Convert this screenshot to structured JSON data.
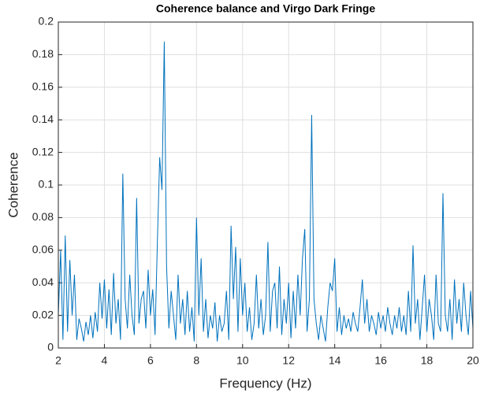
{
  "chart_data": {
    "type": "line",
    "title": "Coherence balance and Virgo Dark Fringe",
    "xlabel": "Frequency (Hz)",
    "ylabel": "Coherence",
    "x": [
      2.0,
      2.1,
      2.2,
      2.3,
      2.4,
      2.5,
      2.6,
      2.7,
      2.8,
      2.9,
      3.0,
      3.1,
      3.2,
      3.3,
      3.4,
      3.5,
      3.6,
      3.7,
      3.8,
      3.9,
      4.0,
      4.1,
      4.2,
      4.3,
      4.4,
      4.5,
      4.6,
      4.7,
      4.8,
      4.9,
      5.0,
      5.1,
      5.2,
      5.3,
      5.4,
      5.5,
      5.6,
      5.7,
      5.8,
      5.9,
      6.0,
      6.1,
      6.2,
      6.3,
      6.4,
      6.5,
      6.6,
      6.7,
      6.8,
      6.9,
      7.0,
      7.1,
      7.2,
      7.3,
      7.4,
      7.5,
      7.6,
      7.7,
      7.8,
      7.9,
      8.0,
      8.1,
      8.2,
      8.3,
      8.4,
      8.5,
      8.6,
      8.7,
      8.8,
      8.9,
      9.0,
      9.1,
      9.2,
      9.3,
      9.4,
      9.5,
      9.6,
      9.7,
      9.8,
      9.9,
      10.0,
      10.1,
      10.2,
      10.3,
      10.4,
      10.5,
      10.6,
      10.7,
      10.8,
      10.9,
      11.0,
      11.1,
      11.2,
      11.3,
      11.4,
      11.5,
      11.6,
      11.7,
      11.8,
      11.9,
      12.0,
      12.1,
      12.2,
      12.3,
      12.4,
      12.5,
      12.6,
      12.7,
      12.8,
      12.9,
      13.0,
      13.1,
      13.2,
      13.3,
      13.4,
      13.5,
      13.6,
      13.7,
      13.8,
      13.9,
      14.0,
      14.1,
      14.2,
      14.3,
      14.4,
      14.5,
      14.6,
      14.7,
      14.8,
      14.9,
      15.0,
      15.1,
      15.2,
      15.3,
      15.4,
      15.5,
      15.6,
      15.7,
      15.8,
      15.9,
      16.0,
      16.1,
      16.2,
      16.3,
      16.4,
      16.5,
      16.6,
      16.7,
      16.8,
      16.9,
      17.0,
      17.1,
      17.2,
      17.3,
      17.4,
      17.5,
      17.6,
      17.7,
      17.8,
      17.9,
      18.0,
      18.1,
      18.2,
      18.3,
      18.4,
      18.5,
      18.6,
      18.7,
      18.8,
      18.9,
      19.0,
      19.1,
      19.2,
      19.3,
      19.4,
      19.5,
      19.6,
      19.7,
      19.8,
      19.9,
      20.0
    ],
    "series": [
      {
        "color": "#0072bd",
        "values": [
          0.02,
          0.06,
          0.005,
          0.069,
          0.01,
          0.054,
          0.02,
          0.045,
          0.005,
          0.018,
          0.012,
          0.004,
          0.016,
          0.008,
          0.02,
          0.006,
          0.022,
          0.01,
          0.04,
          0.018,
          0.042,
          0.012,
          0.036,
          0.008,
          0.046,
          0.015,
          0.03,
          0.005,
          0.107,
          0.03,
          0.012,
          0.045,
          0.02,
          0.008,
          0.092,
          0.015,
          0.03,
          0.035,
          0.012,
          0.048,
          0.02,
          0.036,
          0.008,
          0.065,
          0.117,
          0.097,
          0.188,
          0.05,
          0.012,
          0.035,
          0.02,
          0.005,
          0.045,
          0.015,
          0.03,
          0.008,
          0.035,
          0.01,
          0.025,
          0.004,
          0.08,
          0.02,
          0.055,
          0.01,
          0.03,
          0.006,
          0.02,
          0.012,
          0.028,
          0.004,
          0.02,
          0.01,
          0.015,
          0.035,
          0.005,
          0.075,
          0.03,
          0.062,
          0.01,
          0.055,
          0.02,
          0.04,
          0.01,
          0.025,
          0.005,
          0.015,
          0.045,
          0.012,
          0.03,
          0.008,
          0.02,
          0.065,
          0.01,
          0.035,
          0.04,
          0.012,
          0.05,
          0.008,
          0.03,
          0.015,
          0.04,
          0.006,
          0.035,
          0.012,
          0.045,
          0.02,
          0.055,
          0.073,
          0.01,
          0.03,
          0.143,
          0.03,
          0.015,
          0.005,
          0.02,
          0.012,
          0.004,
          0.025,
          0.04,
          0.035,
          0.055,
          0.01,
          0.025,
          0.008,
          0.02,
          0.012,
          0.018,
          0.01,
          0.022,
          0.015,
          0.01,
          0.025,
          0.042,
          0.015,
          0.03,
          0.01,
          0.02,
          0.015,
          0.008,
          0.022,
          0.012,
          0.02,
          0.01,
          0.025,
          0.015,
          0.008,
          0.02,
          0.012,
          0.025,
          0.01,
          0.02,
          0.008,
          0.035,
          0.01,
          0.063,
          0.015,
          0.03,
          0.005,
          0.025,
          0.045,
          0.01,
          0.03,
          0.02,
          0.005,
          0.045,
          0.015,
          0.01,
          0.095,
          0.02,
          0.01,
          0.03,
          0.005,
          0.042,
          0.015,
          0.03,
          0.01,
          0.04,
          0.02,
          0.008,
          0.035,
          0.012
        ]
      }
    ],
    "xlim": [
      2,
      20
    ],
    "xticks": [
      2,
      4,
      6,
      8,
      10,
      12,
      14,
      16,
      18,
      20
    ],
    "ylim": [
      0,
      0.2
    ],
    "yticks": [
      0,
      0.02,
      0.04,
      0.06,
      0.08,
      0.1,
      0.12,
      0.14,
      0.16,
      0.18,
      0.2
    ],
    "grid": true
  }
}
